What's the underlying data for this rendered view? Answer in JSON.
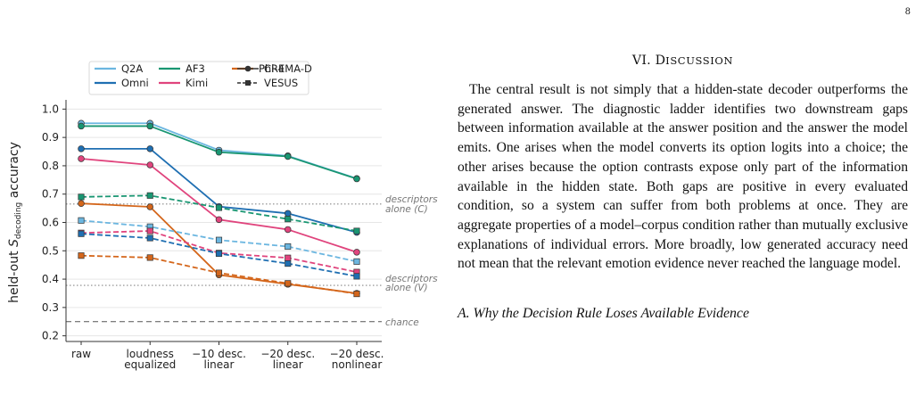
{
  "page": {
    "number": "8"
  },
  "figure": {
    "legend": {
      "models": [
        {
          "name": "Q2A",
          "color": "#6bb6e0"
        },
        {
          "name": "Omni",
          "color": "#1f6fb2"
        },
        {
          "name": "AF3",
          "color": "#199672"
        },
        {
          "name": "Kimi",
          "color": "#e0447d"
        },
        {
          "name": "Phi-4",
          "color": "#d4661b"
        }
      ],
      "corpora": [
        {
          "name": "CREMA-D",
          "marker": "circle",
          "line": "solid"
        },
        {
          "name": "VESUS",
          "marker": "square",
          "line": "dashed"
        }
      ]
    },
    "reference_lines": {
      "descriptors_c": {
        "label_line1": "descriptors",
        "label_line2": "alone (C)",
        "value": 0.665
      },
      "descriptors_v": {
        "label_line1": "descriptors",
        "label_line2": "alone (V)",
        "value": 0.378
      },
      "chance": {
        "label": "chance",
        "value": 0.25
      }
    }
  },
  "chart_data": {
    "type": "line",
    "ylabel_prefix": "held-out ",
    "ylabel_var": "S",
    "ylabel_sub": "decoding",
    "ylabel_suffix": " accuracy",
    "ylim": [
      0.18,
      1.02
    ],
    "yticks": [
      "0.2",
      "0.3",
      "0.4",
      "0.5",
      "0.6",
      "0.7",
      "0.8",
      "0.9",
      "1.0"
    ],
    "categories": [
      [
        "raw"
      ],
      [
        "loudness",
        "equalized"
      ],
      [
        "−10 desc.",
        "linear"
      ],
      [
        "−20 desc.",
        "linear"
      ],
      [
        "−20 desc.",
        "nonlinear"
      ]
    ],
    "grid": true,
    "series": [
      {
        "name": "Q2A CREMA-D",
        "model": "Q2A",
        "corpus": "CREMA-D",
        "values": [
          0.95,
          0.95,
          0.855,
          0.835,
          0.755
        ]
      },
      {
        "name": "AF3 CREMA-D",
        "model": "AF3",
        "corpus": "CREMA-D",
        "values": [
          0.94,
          0.94,
          0.848,
          0.833,
          0.754
        ]
      },
      {
        "name": "Omni CREMA-D",
        "model": "Omni",
        "corpus": "CREMA-D",
        "values": [
          0.86,
          0.86,
          0.656,
          0.632,
          0.565
        ]
      },
      {
        "name": "Kimi CREMA-D",
        "model": "Kimi",
        "corpus": "CREMA-D",
        "values": [
          0.825,
          0.803,
          0.61,
          0.575,
          0.495
        ]
      },
      {
        "name": "Phi-4 CREMA-D",
        "model": "Phi-4",
        "corpus": "CREMA-D",
        "values": [
          0.667,
          0.655,
          0.415,
          0.382,
          0.35
        ]
      },
      {
        "name": "AF3 VESUS",
        "model": "AF3",
        "corpus": "VESUS",
        "values": [
          0.69,
          0.695,
          0.652,
          0.612,
          0.57
        ]
      },
      {
        "name": "Q2A VESUS",
        "model": "Q2A",
        "corpus": "VESUS",
        "values": [
          0.607,
          0.585,
          0.538,
          0.515,
          0.462
        ]
      },
      {
        "name": "Kimi VESUS",
        "model": "Kimi",
        "corpus": "VESUS",
        "values": [
          0.563,
          0.57,
          0.492,
          0.475,
          0.425
        ]
      },
      {
        "name": "Omni VESUS",
        "model": "Omni",
        "corpus": "VESUS",
        "values": [
          0.56,
          0.545,
          0.49,
          0.455,
          0.41
        ]
      },
      {
        "name": "Phi-4 VESUS",
        "model": "Phi-4",
        "corpus": "VESUS",
        "values": [
          0.483,
          0.476,
          0.422,
          0.385,
          0.348
        ]
      }
    ]
  },
  "text": {
    "section_number": "VI. ",
    "section_first": "D",
    "section_rest": "ISCUSSION",
    "paragraph": "The central result is not simply that a hidden-state decoder outperforms the generated answer. The diagnostic ladder identifies two downstream gaps between information available at the answer position and the answer the model emits. One arises when the model converts its option logits into a choice; the other arises because the option contrasts expose only part of the information available in the hidden state. Both gaps are positive in every evaluated condition, so a system can suffer from both problems at once. They are aggregate properties of a model–corpus condition rather than mutually exclusive explanations of individual errors. More broadly, low generated accuracy need not mean that the relevant emotion evidence never reached the language model.",
    "subsection": "A. Why the Decision Rule Loses Available Evidence"
  }
}
